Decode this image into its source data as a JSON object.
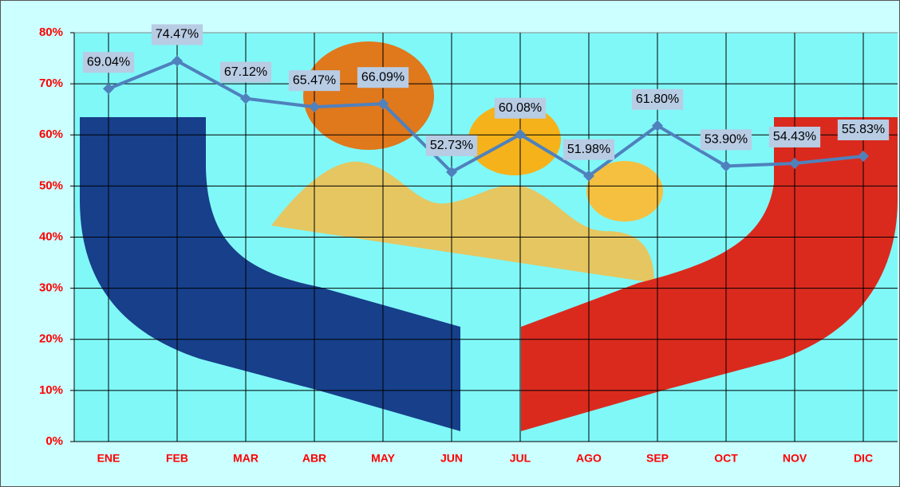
{
  "chart_data": {
    "type": "line",
    "categories": [
      "ENE",
      "FEB",
      "MAR",
      "ABR",
      "MAY",
      "JUN",
      "JUL",
      "AGO",
      "SEP",
      "OCT",
      "NOV",
      "DIC"
    ],
    "values": [
      69.04,
      74.47,
      67.12,
      65.47,
      66.09,
      52.73,
      60.08,
      51.98,
      61.8,
      53.9,
      54.43,
      55.83
    ],
    "value_labels": [
      "69.04%",
      "74.47%",
      "67.12%",
      "65.47%",
      "66.09%",
      "52.73%",
      "60.08%",
      "51.98%",
      "61.80%",
      "53.90%",
      "54.43%",
      "55.83%"
    ],
    "color": "#4f81bd",
    "ylim": [
      0,
      80
    ],
    "yticks": [
      {
        "value": 0,
        "label": "0%"
      },
      {
        "value": 10,
        "label": "10%"
      },
      {
        "value": 20,
        "label": "20%"
      },
      {
        "value": 30,
        "label": "30%"
      },
      {
        "value": 40,
        "label": "40%"
      },
      {
        "value": 50,
        "label": "50%"
      },
      {
        "value": 60,
        "label": "60%"
      },
      {
        "value": 70,
        "label": "70%"
      },
      {
        "value": 80,
        "label": "80%"
      }
    ],
    "grid": true
  }
}
